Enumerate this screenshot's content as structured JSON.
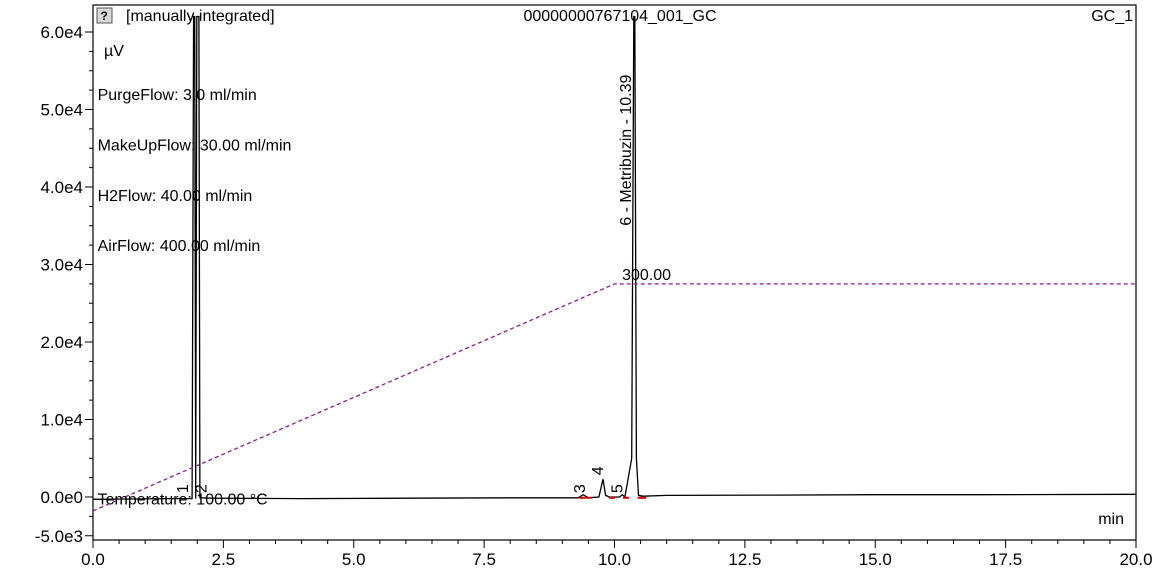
{
  "header": {
    "icon": "help-icon",
    "status": "[manually integrated]",
    "sample": "00000000767104_001_GC",
    "channel": "GC_1"
  },
  "chart_data": {
    "type": "line",
    "xlabel": "min",
    "ylabel": "µV",
    "xlim": [
      0,
      20
    ],
    "ylim": [
      -5000,
      60000
    ],
    "xticks": [
      "0.0",
      "2.5",
      "5.0",
      "7.5",
      "10.0",
      "12.5",
      "15.0",
      "17.5",
      "20.0"
    ],
    "xtick_values": [
      0,
      2.5,
      5,
      7.5,
      10,
      12.5,
      15,
      17.5,
      20
    ],
    "yticks": [
      "-5.0e3",
      "0.0e0",
      "1.0e4",
      "2.0e4",
      "3.0e4",
      "4.0e4",
      "5.0e4",
      "6.0e4"
    ],
    "ytick_values": [
      -5000,
      0,
      10000,
      20000,
      30000,
      40000,
      50000,
      60000
    ],
    "grid": false,
    "series": [
      {
        "name": "",
        "color": "#000000",
        "style": "solid",
        "x": [
          0.0,
          1.5,
          1.9,
          1.93,
          1.95,
          1.97,
          1.99,
          2.03,
          2.05,
          2.3,
          4.0,
          6.0,
          8.0,
          9.3,
          9.4,
          9.5,
          9.7,
          9.78,
          9.83,
          9.9,
          10.1,
          10.15,
          10.2,
          10.33,
          10.37,
          10.39,
          10.42,
          10.46,
          10.55,
          11.0,
          13.0,
          15.0,
          17.0,
          20.0
        ],
        "y": [
          -300,
          -200,
          -200,
          62000,
          62000,
          -200,
          62000,
          62000,
          -100,
          -150,
          -200,
          -150,
          -100,
          -100,
          300,
          -100,
          0,
          2300,
          200,
          0,
          0,
          300,
          0,
          5000,
          62000,
          62000,
          5000,
          200,
          100,
          200,
          250,
          300,
          300,
          350
        ]
      },
      {
        "name": "Temperature",
        "color": "#8B1A8B",
        "style": "dashed",
        "x": [
          0.0,
          10.0,
          20.0
        ],
        "y": [
          -1800,
          27500,
          27500
        ]
      }
    ],
    "annotations": {
      "flows": [
        {
          "text": "PurgeFlow: 3.0 ml/min",
          "x": 0.05,
          "y": 52000
        },
        {
          "text": "MakeUpFlow: 30.00 ml/min",
          "x": 0.05,
          "y": 45500
        },
        {
          "text": "H2Flow: 40.00 ml/min",
          "x": 0.05,
          "y": 39000
        },
        {
          "text": "AirFlow: 400.00 ml/min",
          "x": 0.05,
          "y": 32500
        },
        {
          "text": "Temperature: 100.00 °C",
          "x": 0.05,
          "y": -200
        }
      ],
      "temp_label": {
        "text": "300.00",
        "x": 10.05,
        "y": 28500
      },
      "peaks": [
        {
          "label": "1",
          "x": 1.82,
          "y": 500
        },
        {
          "label": "2",
          "x": 2.18,
          "y": 500
        },
        {
          "label": "3",
          "x": 9.43,
          "y": 500
        },
        {
          "label": "4",
          "x": 9.78,
          "y": 2800
        },
        {
          "label": "5",
          "x": 10.15,
          "y": 500
        },
        {
          "label": "6 - Metribuzin - 10.39",
          "x": 10.32,
          "y": 35000
        }
      ]
    }
  }
}
